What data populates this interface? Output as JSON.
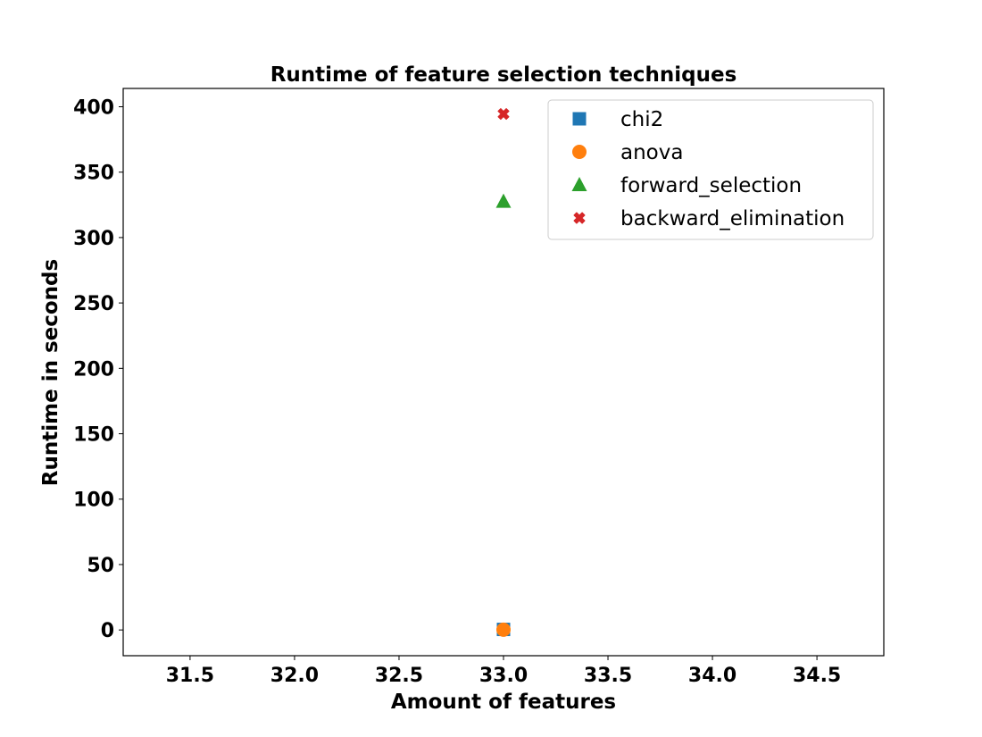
{
  "chart_data": {
    "type": "scatter",
    "title": "Runtime of feature selection techniques",
    "xlabel": "Amount of features",
    "ylabel": "Runtime in seconds",
    "xlim": [
      31.18,
      34.82
    ],
    "ylim": [
      -19.7,
      414.0
    ],
    "xticks": [
      31.5,
      32.0,
      32.5,
      33.0,
      33.5,
      34.0,
      34.5
    ],
    "xtick_labels": [
      "31.5",
      "32.0",
      "32.5",
      "33.0",
      "33.5",
      "34.0",
      "34.5"
    ],
    "yticks": [
      0,
      50,
      100,
      150,
      200,
      250,
      300,
      350,
      400
    ],
    "ytick_labels": [
      "0",
      "50",
      "100",
      "150",
      "200",
      "250",
      "300",
      "350",
      "400"
    ],
    "grid": false,
    "legend_position": "top-right",
    "series": [
      {
        "name": "chi2",
        "marker": "square",
        "color": "#1f77b4",
        "x": [
          33
        ],
        "y": [
          0.4
        ]
      },
      {
        "name": "anova",
        "marker": "circle",
        "color": "#ff7f0e",
        "x": [
          33
        ],
        "y": [
          0.2
        ]
      },
      {
        "name": "forward_selection",
        "marker": "triangle",
        "color": "#2ca02c",
        "x": [
          33
        ],
        "y": [
          327.5
        ]
      },
      {
        "name": "backward_elimination",
        "marker": "x",
        "color": "#d62728",
        "x": [
          33
        ],
        "y": [
          394.5
        ]
      }
    ]
  }
}
